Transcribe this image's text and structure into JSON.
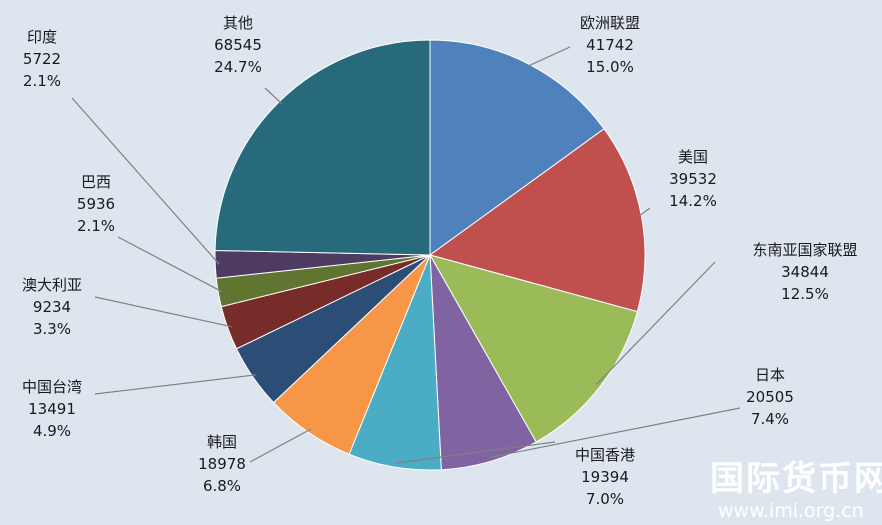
{
  "chart_data": {
    "type": "pie",
    "title": "",
    "slices": [
      {
        "name": "欧洲联盟",
        "value": 41742,
        "percent": "15.0%",
        "color": "#4f81bd"
      },
      {
        "name": "美国",
        "value": 39532,
        "percent": "14.2%",
        "color": "#c0504d"
      },
      {
        "name": "东南亚国家联盟",
        "value": 34844,
        "percent": "12.5%",
        "color": "#9bbb59"
      },
      {
        "name": "日本",
        "value": 20505,
        "percent": "7.4%",
        "color": "#8064a2"
      },
      {
        "name": "中国香港",
        "value": 19394,
        "percent": "7.0%",
        "color": "#4bacc6"
      },
      {
        "name": "韩国",
        "value": 18978,
        "percent": "6.8%",
        "color": "#f79646"
      },
      {
        "name": "中国台湾",
        "value": 13491,
        "percent": "4.9%",
        "color": "#2c4d75"
      },
      {
        "name": "澳大利亚",
        "value": 9234,
        "percent": "3.3%",
        "color": "#772c2a"
      },
      {
        "name": "巴西",
        "value": 5936,
        "percent": "2.1%",
        "color": "#5f7530"
      },
      {
        "name": "印度",
        "value": 5722,
        "percent": "2.1%",
        "color": "#4d3b62"
      },
      {
        "name": "其他",
        "value": 68545,
        "percent": "24.7%",
        "color": "#276a7c"
      }
    ],
    "legend": "none",
    "data_labels": "outside-with-leader-lines"
  },
  "watermark": {
    "text": "国际货币网",
    "url": "www.imi.org.cn"
  }
}
